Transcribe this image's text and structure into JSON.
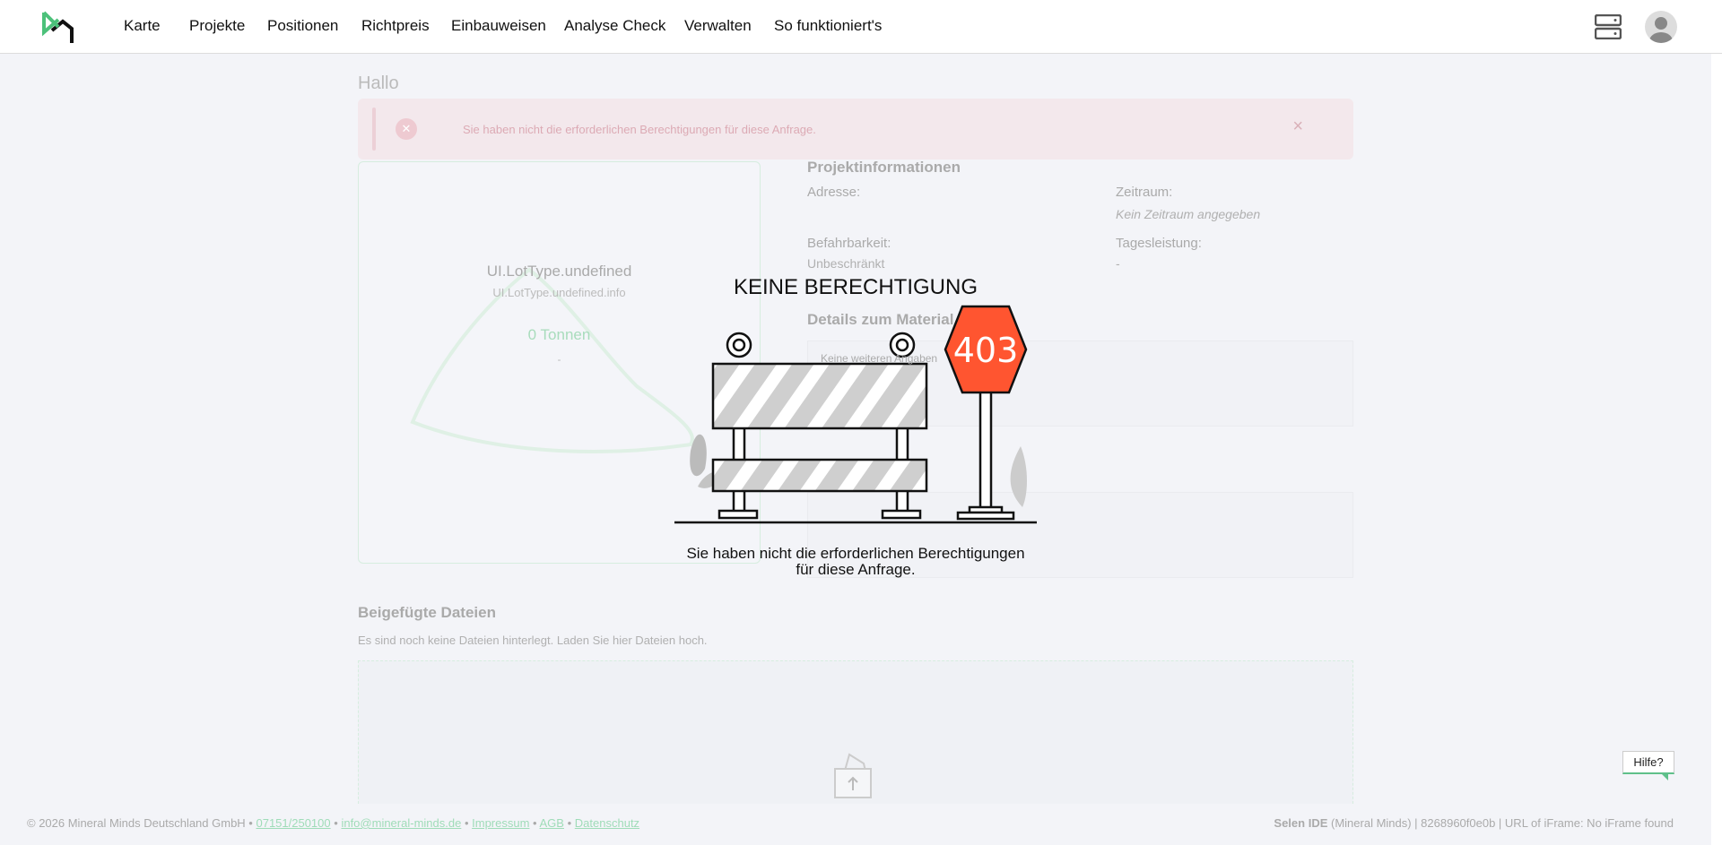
{
  "nav": {
    "items": [
      "Karte",
      "Projekte",
      "Positionen",
      "Richtpreis",
      "Einbauweisen",
      "Analyse Check",
      "Verwalten",
      "So funktioniert's"
    ],
    "brand_color": "#4cc17a"
  },
  "page": {
    "greeting": "Hallo",
    "alert": {
      "icon": "x-circle-icon",
      "message": "Sie haben nicht die erforderlichen Berechtigungen für diese Anfrage.",
      "close": "×"
    },
    "card": {
      "title": "UI.LotType.undefined",
      "subtitle": "UI.LotType.undefined.info",
      "amount": "0  Tonnen",
      "dash": "-"
    },
    "project_info": {
      "title": "Projektinformationen",
      "address_label": "Adresse:",
      "period_label": "Zeitraum:",
      "period_value": "Kein Zeitraum angegeben",
      "access_label": "Befahrbarkeit:",
      "access_value": "Unbeschränkt",
      "daily_label": "Tagesleistung:",
      "daily_value": "-"
    },
    "material": {
      "title": "Details zum Material",
      "text": "Keine weiteren Angaben"
    },
    "files": {
      "title": "Beigefügte Dateien",
      "text": "Es sind noch keine Dateien hinterlegt. Laden Sie hier Dateien hoch."
    }
  },
  "modal": {
    "title": "KEINE BERECHTIGUNG",
    "code": "403",
    "message": "Sie haben nicht die erforderlichen Berechtigungen für diese Anfrage.",
    "sign_color": "#ff5530"
  },
  "footer": {
    "copyright": "© 2026 Mineral Minds Deutschland GmbH •",
    "phone": "07151/250100",
    "email": "info@mineral-minds.de",
    "impressum": "Impressum",
    "agb": "AGB",
    "datenschutz": "Datenschutz",
    "sep": "•",
    "right_bold": "Selen IDE",
    "right_text": "(Mineral Minds) | 8268960f0e0b | URL of iFrame: No iFrame found"
  },
  "help": "Hilfe?"
}
